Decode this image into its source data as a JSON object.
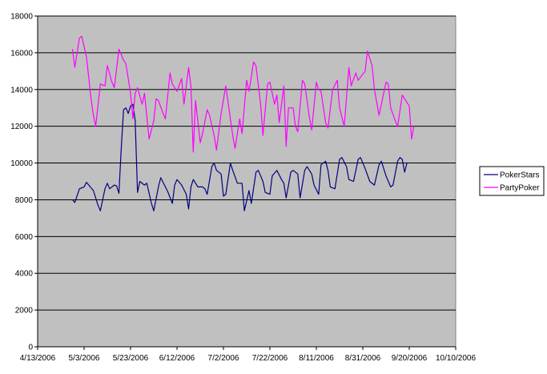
{
  "chart_data": {
    "type": "line",
    "title": "",
    "xlabel": "",
    "ylabel": "",
    "ylim": [
      0,
      18000
    ],
    "yticks": [
      0,
      2000,
      4000,
      6000,
      8000,
      10000,
      12000,
      14000,
      16000,
      18000
    ],
    "xlim": [
      "2006-04-13",
      "2006-10-10"
    ],
    "xtick_labels": [
      "4/13/2006",
      "5/3/2006",
      "5/23/2006",
      "6/12/2006",
      "7/2/2006",
      "7/22/2006",
      "8/11/2006",
      "8/31/2006",
      "9/20/2006",
      "10/10/2006"
    ],
    "grid": "horizontal",
    "plot_background": "#c0c0c0",
    "legend_position": "right",
    "series": [
      {
        "name": "PokerStars",
        "color": "#000080",
        "points": [
          [
            "2006-04-28",
            8000
          ],
          [
            "2006-04-29",
            7850
          ],
          [
            "2006-05-01",
            8600
          ],
          [
            "2006-05-03",
            8700
          ],
          [
            "2006-05-04",
            8950
          ],
          [
            "2006-05-06",
            8650
          ],
          [
            "2006-05-07",
            8500
          ],
          [
            "2006-05-09",
            7700
          ],
          [
            "2006-05-10",
            7400
          ],
          [
            "2006-05-12",
            8600
          ],
          [
            "2006-05-13",
            8900
          ],
          [
            "2006-05-14",
            8600
          ],
          [
            "2006-05-16",
            8800
          ],
          [
            "2006-05-17",
            8750
          ],
          [
            "2006-05-18",
            8350
          ],
          [
            "2006-05-19",
            10800
          ],
          [
            "2006-05-20",
            12900
          ],
          [
            "2006-05-21",
            13000
          ],
          [
            "2006-05-22",
            12700
          ],
          [
            "2006-05-23",
            13100
          ],
          [
            "2006-05-24",
            13200
          ],
          [
            "2006-05-25",
            12300
          ],
          [
            "2006-05-26",
            8400
          ],
          [
            "2006-05-27",
            9000
          ],
          [
            "2006-05-29",
            8800
          ],
          [
            "2006-05-30",
            8900
          ],
          [
            "2006-06-01",
            7800
          ],
          [
            "2006-06-02",
            7400
          ],
          [
            "2006-06-04",
            8700
          ],
          [
            "2006-06-05",
            9200
          ],
          [
            "2006-06-07",
            8700
          ],
          [
            "2006-06-08",
            8450
          ],
          [
            "2006-06-10",
            7800
          ],
          [
            "2006-06-11",
            8800
          ],
          [
            "2006-06-12",
            9100
          ],
          [
            "2006-06-14",
            8800
          ],
          [
            "2006-06-16",
            8300
          ],
          [
            "2006-06-17",
            7500
          ],
          [
            "2006-06-18",
            8700
          ],
          [
            "2006-06-19",
            9100
          ],
          [
            "2006-06-21",
            8700
          ],
          [
            "2006-06-23",
            8700
          ],
          [
            "2006-06-24",
            8600
          ],
          [
            "2006-06-25",
            8300
          ],
          [
            "2006-06-27",
            9800
          ],
          [
            "2006-06-28",
            10000
          ],
          [
            "2006-06-29",
            9600
          ],
          [
            "2006-07-01",
            9400
          ],
          [
            "2006-07-02",
            8200
          ],
          [
            "2006-07-03",
            8300
          ],
          [
            "2006-07-05",
            10000
          ],
          [
            "2006-07-06",
            9600
          ],
          [
            "2006-07-08",
            8900
          ],
          [
            "2006-07-10",
            8900
          ],
          [
            "2006-07-11",
            7400
          ],
          [
            "2006-07-13",
            8500
          ],
          [
            "2006-07-14",
            7800
          ],
          [
            "2006-07-16",
            9500
          ],
          [
            "2006-07-17",
            9600
          ],
          [
            "2006-07-19",
            9000
          ],
          [
            "2006-07-20",
            8400
          ],
          [
            "2006-07-22",
            8300
          ],
          [
            "2006-07-23",
            9300
          ],
          [
            "2006-07-25",
            9600
          ],
          [
            "2006-07-27",
            9100
          ],
          [
            "2006-07-28",
            8900
          ],
          [
            "2006-07-29",
            8100
          ],
          [
            "2006-07-31",
            9500
          ],
          [
            "2006-08-01",
            9600
          ],
          [
            "2006-08-03",
            9400
          ],
          [
            "2006-08-04",
            8100
          ],
          [
            "2006-08-06",
            9600
          ],
          [
            "2006-08-07",
            9800
          ],
          [
            "2006-08-09",
            9400
          ],
          [
            "2006-08-10",
            8800
          ],
          [
            "2006-08-12",
            8300
          ],
          [
            "2006-08-13",
            9900
          ],
          [
            "2006-08-15",
            10100
          ],
          [
            "2006-08-16",
            9600
          ],
          [
            "2006-08-17",
            8700
          ],
          [
            "2006-08-19",
            8600
          ],
          [
            "2006-08-21",
            10200
          ],
          [
            "2006-08-22",
            10300
          ],
          [
            "2006-08-24",
            9800
          ],
          [
            "2006-08-25",
            9100
          ],
          [
            "2006-08-27",
            9000
          ],
          [
            "2006-08-29",
            10200
          ],
          [
            "2006-08-30",
            10300
          ],
          [
            "2006-09-01",
            9700
          ],
          [
            "2006-09-03",
            9000
          ],
          [
            "2006-09-05",
            8800
          ],
          [
            "2006-09-07",
            9900
          ],
          [
            "2006-09-08",
            10100
          ],
          [
            "2006-09-10",
            9300
          ],
          [
            "2006-09-12",
            8700
          ],
          [
            "2006-09-13",
            8800
          ],
          [
            "2006-09-15",
            10100
          ],
          [
            "2006-09-16",
            10300
          ],
          [
            "2006-09-17",
            10200
          ],
          [
            "2006-09-18",
            9500
          ],
          [
            "2006-09-19",
            10000
          ]
        ]
      },
      {
        "name": "PartyPoker",
        "color": "#ff00ff",
        "points": [
          [
            "2006-04-28",
            16200
          ],
          [
            "2006-04-29",
            15200
          ],
          [
            "2006-05-01",
            16800
          ],
          [
            "2006-05-02",
            16900
          ],
          [
            "2006-05-04",
            15800
          ],
          [
            "2006-05-06",
            13500
          ],
          [
            "2006-05-07",
            12600
          ],
          [
            "2006-05-08",
            12000
          ],
          [
            "2006-05-10",
            14300
          ],
          [
            "2006-05-12",
            14200
          ],
          [
            "2006-05-13",
            15300
          ],
          [
            "2006-05-15",
            14400
          ],
          [
            "2006-05-16",
            14100
          ],
          [
            "2006-05-18",
            16200
          ],
          [
            "2006-05-20",
            15600
          ],
          [
            "2006-05-21",
            15400
          ],
          [
            "2006-05-23",
            13800
          ],
          [
            "2006-05-24",
            12400
          ],
          [
            "2006-05-25",
            13800
          ],
          [
            "2006-05-26",
            14100
          ],
          [
            "2006-05-28",
            13200
          ],
          [
            "2006-05-29",
            13800
          ],
          [
            "2006-05-31",
            11300
          ],
          [
            "2006-06-02",
            12300
          ],
          [
            "2006-06-03",
            13500
          ],
          [
            "2006-06-04",
            13400
          ],
          [
            "2006-06-06",
            12700
          ],
          [
            "2006-06-07",
            12400
          ],
          [
            "2006-06-09",
            14900
          ],
          [
            "2006-06-10",
            14300
          ],
          [
            "2006-06-12",
            13900
          ],
          [
            "2006-06-14",
            14600
          ],
          [
            "2006-06-15",
            13200
          ],
          [
            "2006-06-17",
            15200
          ],
          [
            "2006-06-18",
            14200
          ],
          [
            "2006-06-19",
            10600
          ],
          [
            "2006-06-20",
            13400
          ],
          [
            "2006-06-22",
            11100
          ],
          [
            "2006-06-23",
            11600
          ],
          [
            "2006-06-25",
            12900
          ],
          [
            "2006-06-26",
            12600
          ],
          [
            "2006-06-28",
            11500
          ],
          [
            "2006-06-29",
            10700
          ],
          [
            "2006-07-01",
            12700
          ],
          [
            "2006-07-03",
            14200
          ],
          [
            "2006-07-04",
            13300
          ],
          [
            "2006-07-06",
            11500
          ],
          [
            "2006-07-07",
            10800
          ],
          [
            "2006-07-09",
            12400
          ],
          [
            "2006-07-10",
            11600
          ],
          [
            "2006-07-12",
            14500
          ],
          [
            "2006-07-13",
            13900
          ],
          [
            "2006-07-15",
            15500
          ],
          [
            "2006-07-16",
            15300
          ],
          [
            "2006-07-18",
            13200
          ],
          [
            "2006-07-19",
            11500
          ],
          [
            "2006-07-21",
            14300
          ],
          [
            "2006-07-22",
            14400
          ],
          [
            "2006-07-24",
            13200
          ],
          [
            "2006-07-25",
            13700
          ],
          [
            "2006-07-26",
            12200
          ],
          [
            "2006-07-28",
            14200
          ],
          [
            "2006-07-29",
            10900
          ],
          [
            "2006-07-30",
            13000
          ],
          [
            "2006-08-01",
            13000
          ],
          [
            "2006-08-02",
            12000
          ],
          [
            "2006-08-03",
            11700
          ],
          [
            "2006-08-05",
            14500
          ],
          [
            "2006-08-06",
            14300
          ],
          [
            "2006-08-08",
            12500
          ],
          [
            "2006-08-09",
            11800
          ],
          [
            "2006-08-11",
            14400
          ],
          [
            "2006-08-12",
            14000
          ],
          [
            "2006-08-13",
            13900
          ],
          [
            "2006-08-15",
            12200
          ],
          [
            "2006-08-16",
            11900
          ],
          [
            "2006-08-18",
            14000
          ],
          [
            "2006-08-20",
            14500
          ],
          [
            "2006-08-21",
            13000
          ],
          [
            "2006-08-23",
            12000
          ],
          [
            "2006-08-25",
            15200
          ],
          [
            "2006-08-26",
            14200
          ],
          [
            "2006-08-28",
            14900
          ],
          [
            "2006-08-29",
            14500
          ],
          [
            "2006-09-01",
            15000
          ],
          [
            "2006-09-02",
            16100
          ],
          [
            "2006-09-04",
            15300
          ],
          [
            "2006-09-05",
            14000
          ],
          [
            "2006-09-07",
            12600
          ],
          [
            "2006-09-08",
            13200
          ],
          [
            "2006-09-10",
            14400
          ],
          [
            "2006-09-11",
            14300
          ],
          [
            "2006-09-12",
            13000
          ],
          [
            "2006-09-14",
            12300
          ],
          [
            "2006-09-15",
            12000
          ],
          [
            "2006-09-17",
            13700
          ],
          [
            "2006-09-18",
            13500
          ],
          [
            "2006-09-20",
            13100
          ],
          [
            "2006-09-21",
            11300
          ],
          [
            "2006-09-22",
            12000
          ]
        ]
      }
    ]
  }
}
